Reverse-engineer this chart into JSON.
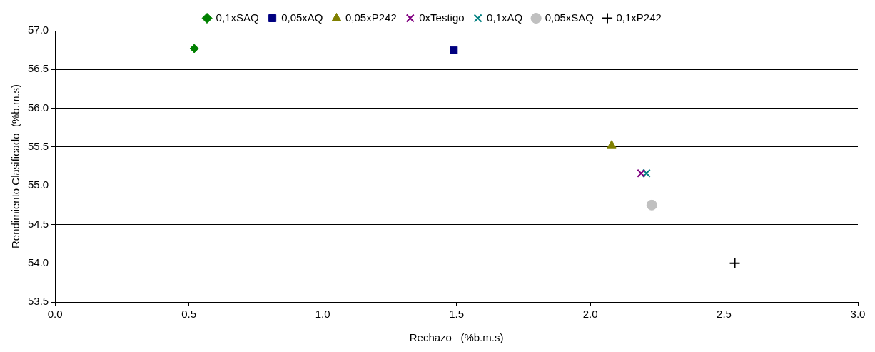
{
  "chart_data": {
    "type": "scatter",
    "xlabel": "Rechazo   (%b.m.s)",
    "ylabel": "Rendimiento Clasificado  (%b.m.s)",
    "xlim": [
      0,
      3
    ],
    "xticks": [
      {
        "value": 0,
        "label": "0.0"
      },
      {
        "value": 0.5,
        "label": "0.5"
      },
      {
        "value": 1,
        "label": "1.0"
      },
      {
        "value": 1.5,
        "label": "1.5"
      },
      {
        "value": 2,
        "label": "2.0"
      },
      {
        "value": 2.5,
        "label": "2.5"
      },
      {
        "value": 3,
        "label": "3.0"
      }
    ],
    "ylim": [
      53.5,
      57
    ],
    "yticks": [
      {
        "value": 53.5,
        "label": "53.5"
      },
      {
        "value": 54,
        "label": "54.0"
      },
      {
        "value": 54.5,
        "label": "54.5"
      },
      {
        "value": 55,
        "label": "55.0"
      },
      {
        "value": 55.5,
        "label": "55.5"
      },
      {
        "value": 56,
        "label": "56.0"
      },
      {
        "value": 56.5,
        "label": "56.5"
      },
      {
        "value": 57,
        "label": "57.0"
      }
    ],
    "grid": "y",
    "legend": "top",
    "series": [
      {
        "name": "0,1xSAQ",
        "color": "#008000",
        "marker": "diamond",
        "x": [
          0.52
        ],
        "values": [
          56.77
        ]
      },
      {
        "name": "0,05xAQ",
        "color": "#000080",
        "marker": "square",
        "x": [
          1.49
        ],
        "values": [
          56.75
        ]
      },
      {
        "name": "0,05xP242",
        "color": "#808000",
        "marker": "triangle",
        "x": [
          2.08
        ],
        "values": [
          55.52
        ]
      },
      {
        "name": "0xTestigo",
        "color": "#800080",
        "marker": "cross",
        "x": [
          2.19
        ],
        "values": [
          55.16
        ]
      },
      {
        "name": "0,1xAQ",
        "color": "#008080",
        "marker": "cross",
        "x": [
          2.21
        ],
        "values": [
          55.16
        ]
      },
      {
        "name": "0,05xSAQ",
        "color": "#c0c0c0",
        "marker": "circle",
        "x": [
          2.23
        ],
        "values": [
          54.75
        ]
      },
      {
        "name": "0,1xP242",
        "color": "#000000",
        "marker": "plus",
        "x": [
          2.54
        ],
        "values": [
          54.0
        ]
      }
    ]
  }
}
